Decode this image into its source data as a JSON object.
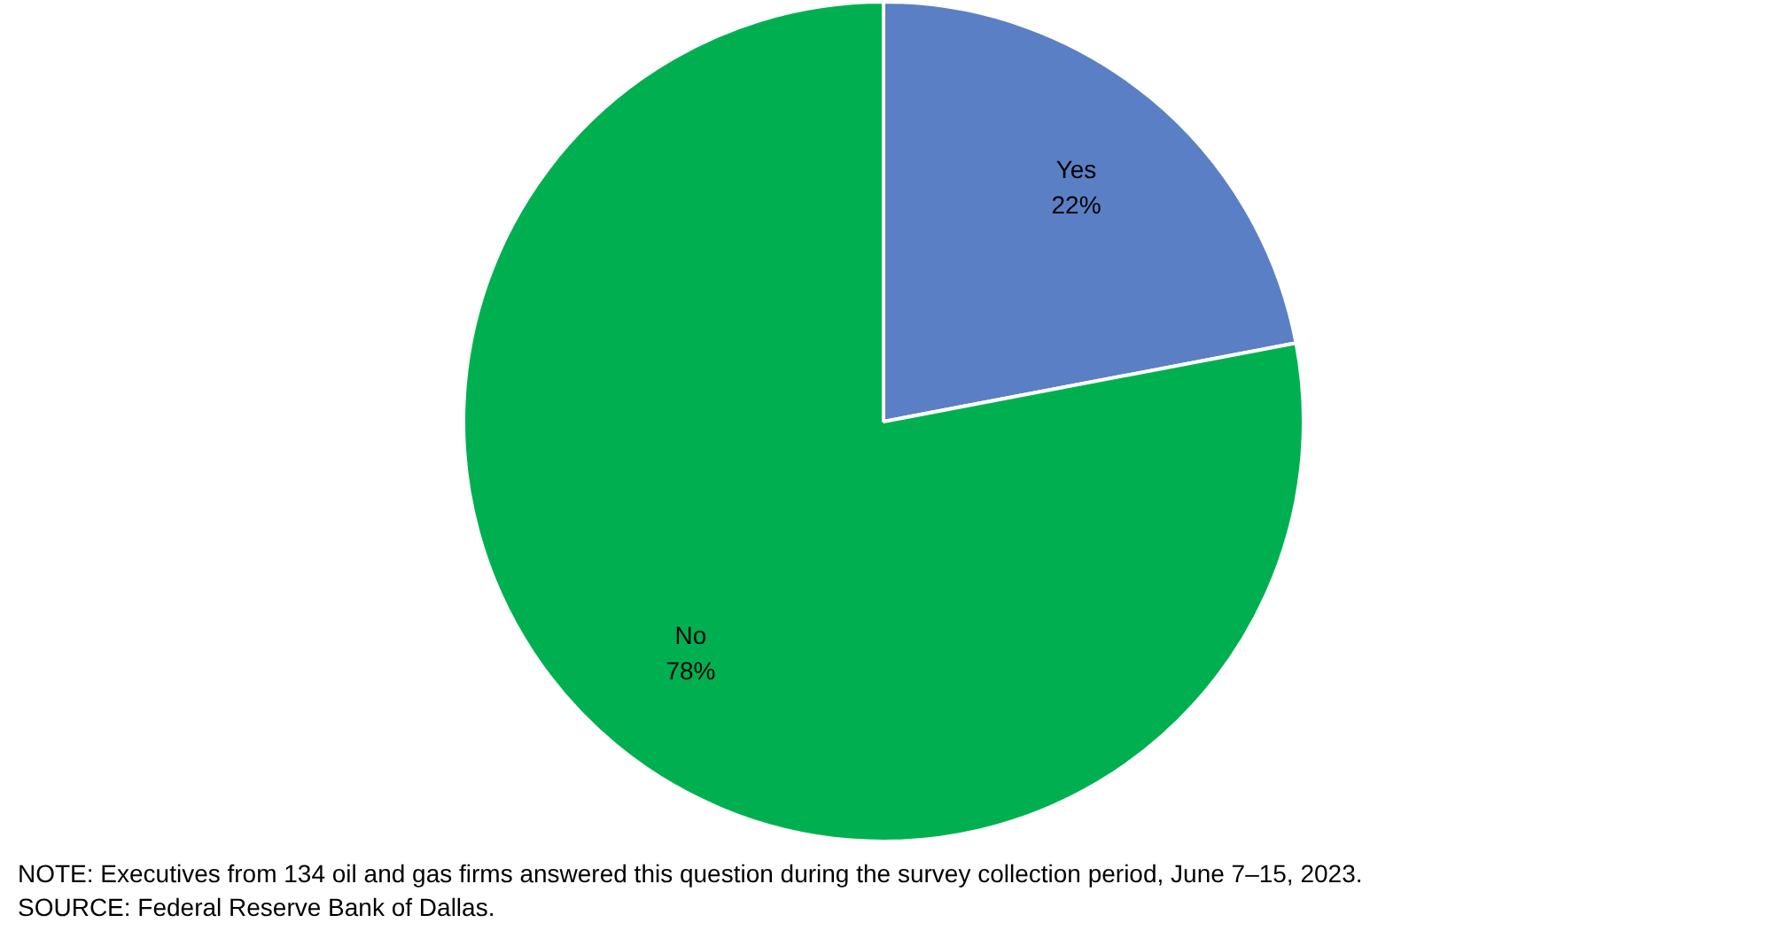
{
  "chart_data": {
    "type": "pie",
    "categories": [
      "Yes",
      "No"
    ],
    "values": [
      22,
      78
    ],
    "colors": [
      "#5b7fc4",
      "#00b050"
    ],
    "value_labels": [
      "22%",
      "78%"
    ],
    "legend": false,
    "annotations": [
      "NOTE: Executives from 134 oil and gas firms answered this question during the survey collection period, June 7–15, 2023.",
      "SOURCE: Federal Reserve Bank of Dallas."
    ]
  }
}
